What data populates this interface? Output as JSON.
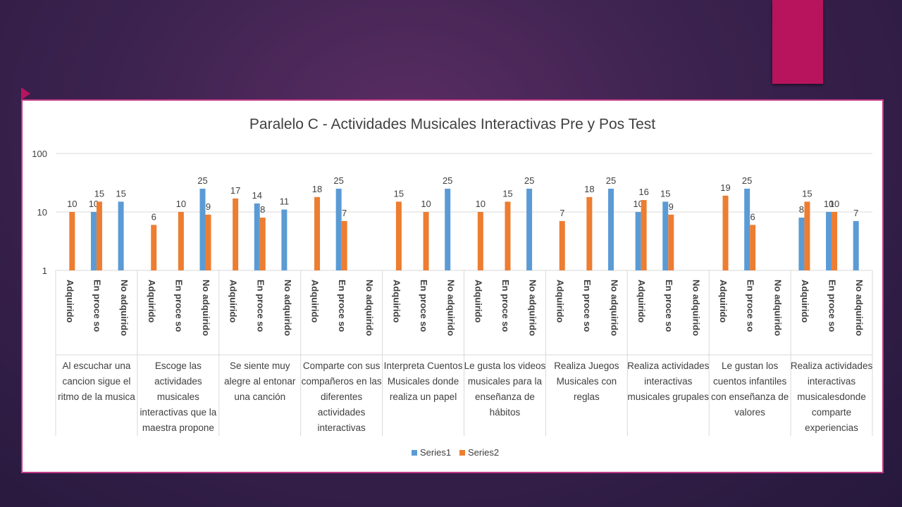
{
  "slide": {
    "accent_color": "#b8145e",
    "background_color": "#3d2350"
  },
  "chart_data": {
    "type": "bar",
    "title": "Paralelo C - Actividades Musicales Interactivas Pre y Pos Test",
    "y_scale": "log",
    "ylim": [
      1,
      100
    ],
    "y_ticks": [
      "1",
      "10",
      "100"
    ],
    "grid": true,
    "legend_position": "bottom",
    "sub_labels": [
      "Adquirido",
      "En proceso",
      "No adquirido"
    ],
    "sub_labels_display": [
      "Adquirido",
      "En proce so",
      "No adquirido"
    ],
    "series": [
      {
        "name": "Series1",
        "color": "#5b9bd5"
      },
      {
        "name": "Series2",
        "color": "#ed7d31"
      }
    ],
    "groups": [
      {
        "label": "Al escuchar una cancion sigue el ritmo de la musica",
        "label_lines": [
          "Al escuchar una",
          "cancion sigue el",
          "ritmo de la musica"
        ],
        "series1": [
          null,
          10,
          15
        ],
        "series2": [
          10,
          15,
          null
        ]
      },
      {
        "label": "Escoge las actividades musicales interactivas que la maestra propone",
        "label_lines": [
          "Escoge las",
          "actividades",
          "musicales",
          "interactivas que la",
          "maestra propone"
        ],
        "series1": [
          null,
          null,
          25
        ],
        "series2": [
          6,
          10,
          9
        ]
      },
      {
        "label": "Se siente muy alegre al entonar una canción",
        "label_lines": [
          "Se siente muy",
          "alegre al entonar",
          "una canción"
        ],
        "series1": [
          null,
          14,
          11
        ],
        "series2": [
          17,
          8,
          null
        ]
      },
      {
        "label": "Comparte con sus compañeros en las diferentes actividades interactivas",
        "label_lines": [
          "Comparte con sus",
          "compañeros en las",
          "diferentes",
          "actividades",
          "interactivas"
        ],
        "series1": [
          null,
          25,
          null
        ],
        "series2": [
          18,
          7,
          null
        ]
      },
      {
        "label": "Interpreta Cuentos Musicales donde realiza un papel",
        "label_lines": [
          "Interpreta Cuentos",
          "Musicales donde",
          "realiza un papel"
        ],
        "series1": [
          null,
          null,
          25
        ],
        "series2": [
          15,
          10,
          null
        ]
      },
      {
        "label": "Le gusta los videos musicales para la enseñanza de hábitos",
        "label_lines": [
          "Le gusta los videos",
          "musicales para la",
          "enseñanza de",
          "hábitos"
        ],
        "series1": [
          null,
          null,
          25
        ],
        "series2": [
          10,
          15,
          null
        ]
      },
      {
        "label": "Realiza Juegos Musicales con reglas",
        "label_lines": [
          "Realiza Juegos",
          "Musicales con",
          "reglas"
        ],
        "series1": [
          null,
          null,
          25
        ],
        "series2": [
          7,
          18,
          null
        ]
      },
      {
        "label": "Realiza actividades interactivas musicales grupales",
        "label_lines": [
          "Realiza actividades",
          "interactivas",
          "musicales grupales"
        ],
        "series1": [
          10,
          15,
          null
        ],
        "series2": [
          16,
          9,
          null
        ]
      },
      {
        "label": "Le gustan los cuentos infantiles con enseñanza de valores",
        "label_lines": [
          "Le gustan los",
          "cuentos infantiles",
          "con enseñanza de",
          "valores"
        ],
        "series1": [
          null,
          25,
          null
        ],
        "series2": [
          19,
          6,
          null
        ]
      },
      {
        "label": "Realiza actividades interactivas musicalesdonde comparte experiencias",
        "label_lines": [
          "Realiza actividades",
          "interactivas",
          "musicalesdonde",
          "comparte",
          "experiencias"
        ],
        "series1": [
          8,
          10,
          7
        ],
        "series2": [
          15,
          10,
          null
        ]
      }
    ]
  }
}
